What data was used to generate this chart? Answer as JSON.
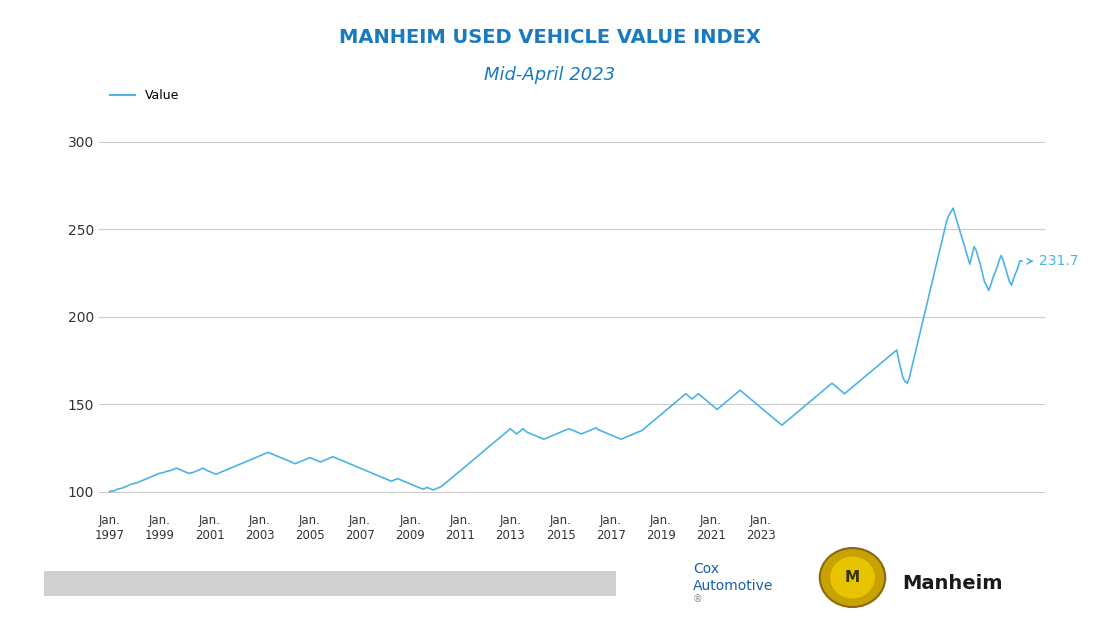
{
  "title": "MANHEIM USED VEHICLE VALUE INDEX",
  "subtitle": "Mid-April 2023",
  "title_color": "#1a7abf",
  "subtitle_color": "#1a7abf",
  "line_color": "#4db3e6",
  "ylabel_value": "231.7",
  "ylabel_color": "#4db3e6",
  "ylim": [
    90,
    310
  ],
  "yticks": [
    100,
    150,
    200,
    250,
    300
  ],
  "background_color": "#ffffff",
  "grid_color": "#cccccc",
  "xtick_labels": [
    "Jan.\n1997",
    "Jan.\n1999",
    "Jan.\n2001",
    "Jan.\n2003",
    "Jan.\n2005",
    "Jan.\n2007",
    "Jan.\n2009",
    "Jan.\n2011",
    "Jan.\n2013",
    "Jan.\n2015",
    "Jan.\n2017",
    "Jan.\n2019",
    "Jan.\n2021",
    "Jan.\n2023"
  ],
  "values": [
    100.0,
    100.5,
    100.3,
    101.0,
    101.5,
    101.8,
    102.0,
    102.5,
    103.0,
    103.5,
    104.0,
    104.5,
    104.8,
    105.0,
    105.5,
    106.0,
    106.5,
    107.0,
    107.5,
    108.0,
    108.5,
    109.0,
    109.5,
    110.0,
    110.5,
    110.8,
    111.0,
    111.5,
    111.8,
    112.0,
    112.5,
    113.0,
    113.5,
    113.0,
    112.5,
    112.0,
    111.5,
    111.0,
    110.5,
    110.8,
    111.0,
    111.5,
    112.0,
    112.5,
    113.0,
    113.5,
    112.5,
    112.0,
    111.5,
    111.0,
    110.5,
    110.0,
    110.5,
    111.0,
    111.5,
    112.0,
    112.5,
    113.0,
    113.5,
    114.0,
    114.5,
    115.0,
    115.5,
    116.0,
    116.5,
    117.0,
    117.5,
    118.0,
    118.5,
    119.0,
    119.5,
    120.0,
    120.5,
    121.0,
    121.5,
    122.0,
    122.5,
    122.0,
    121.5,
    121.0,
    120.5,
    120.0,
    119.5,
    119.0,
    118.5,
    118.0,
    117.5,
    117.0,
    116.5,
    116.0,
    116.5,
    117.0,
    117.5,
    118.0,
    118.5,
    119.0,
    119.5,
    119.0,
    118.5,
    118.0,
    117.5,
    117.0,
    117.5,
    118.0,
    118.5,
    119.0,
    119.5,
    120.0,
    119.5,
    119.0,
    118.5,
    118.0,
    117.5,
    117.0,
    116.5,
    116.0,
    115.5,
    115.0,
    114.5,
    114.0,
    113.5,
    113.0,
    112.5,
    112.0,
    111.5,
    111.0,
    110.5,
    110.0,
    109.5,
    109.0,
    108.5,
    108.0,
    107.5,
    107.0,
    106.5,
    106.0,
    106.5,
    107.0,
    107.5,
    107.0,
    106.5,
    106.0,
    105.5,
    105.0,
    104.5,
    104.0,
    103.5,
    103.0,
    102.5,
    102.0,
    101.5,
    101.8,
    102.5,
    102.0,
    101.5,
    101.0,
    101.5,
    102.0,
    102.5,
    103.0,
    104.0,
    105.0,
    106.0,
    107.0,
    108.0,
    109.0,
    110.0,
    111.0,
    112.0,
    113.0,
    114.0,
    115.0,
    116.0,
    117.0,
    118.0,
    119.0,
    120.0,
    121.0,
    122.0,
    123.0,
    124.0,
    125.0,
    126.0,
    127.0,
    128.0,
    129.0,
    130.0,
    131.0,
    132.0,
    133.0,
    134.0,
    135.0,
    136.0,
    135.0,
    134.0,
    133.0,
    134.0,
    135.0,
    136.0,
    135.0,
    134.0,
    133.5,
    133.0,
    132.5,
    132.0,
    131.5,
    131.0,
    130.5,
    130.0,
    130.5,
    131.0,
    131.5,
    132.0,
    132.5,
    133.0,
    133.5,
    134.0,
    134.5,
    135.0,
    135.5,
    136.0,
    135.5,
    135.0,
    134.5,
    134.0,
    133.5,
    133.0,
    133.5,
    134.0,
    134.5,
    135.0,
    135.5,
    136.0,
    136.5,
    135.5,
    135.0,
    134.5,
    134.0,
    133.5,
    133.0,
    132.5,
    132.0,
    131.5,
    131.0,
    130.5,
    130.0,
    130.5,
    131.0,
    131.5,
    132.0,
    132.5,
    133.0,
    133.5,
    134.0,
    134.5,
    135.0,
    136.0,
    137.0,
    138.0,
    139.0,
    140.0,
    141.0,
    142.0,
    143.0,
    144.0,
    145.0,
    146.0,
    147.0,
    148.0,
    149.0,
    150.0,
    151.0,
    152.0,
    153.0,
    154.0,
    155.0,
    156.0,
    155.0,
    154.0,
    153.0,
    154.0,
    155.0,
    156.0,
    155.0,
    154.0,
    153.0,
    152.0,
    151.0,
    150.0,
    149.0,
    148.0,
    147.0,
    148.0,
    149.0,
    150.0,
    151.0,
    152.0,
    153.0,
    154.0,
    155.0,
    156.0,
    157.0,
    158.0,
    157.0,
    156.0,
    155.0,
    154.0,
    153.0,
    152.0,
    151.0,
    150.0,
    149.0,
    148.0,
    147.0,
    146.0,
    145.0,
    144.0,
    143.0,
    142.0,
    141.0,
    140.0,
    139.0,
    138.0,
    139.0,
    140.0,
    141.0,
    142.0,
    143.0,
    144.0,
    145.0,
    146.0,
    147.0,
    148.0,
    149.0,
    150.0,
    151.0,
    152.0,
    153.0,
    154.0,
    155.0,
    156.0,
    157.0,
    158.0,
    159.0,
    160.0,
    161.0,
    162.0,
    161.0,
    160.0,
    159.0,
    158.0,
    157.0,
    156.0,
    157.0,
    158.0,
    159.0,
    160.0,
    161.0,
    162.0,
    163.0,
    164.0,
    165.0,
    166.0,
    167.0,
    168.0,
    169.0,
    170.0,
    171.0,
    172.0,
    173.0,
    174.0,
    175.0,
    176.0,
    177.0,
    178.0,
    179.0,
    180.0,
    181.0,
    175.0,
    170.0,
    165.0,
    163.0,
    162.0,
    165.0,
    170.0,
    175.0,
    180.0,
    185.0,
    190.0,
    195.0,
    200.0,
    205.0,
    210.0,
    215.0,
    220.0,
    225.0,
    230.0,
    235.0,
    240.0,
    245.0,
    250.0,
    255.0,
    258.0,
    260.0,
    262.0,
    258.0,
    254.0,
    250.0,
    246.0,
    242.0,
    238.0,
    234.0,
    230.0,
    235.0,
    240.0,
    238.0,
    234.0,
    230.0,
    225.0,
    220.0,
    218.0,
    215.0,
    218.0,
    222.0,
    225.0,
    228.0,
    232.0,
    235.0,
    232.0,
    228.0,
    224.0,
    220.0,
    218.0,
    222.0,
    225.0,
    228.0,
    232.0,
    231.7
  ]
}
